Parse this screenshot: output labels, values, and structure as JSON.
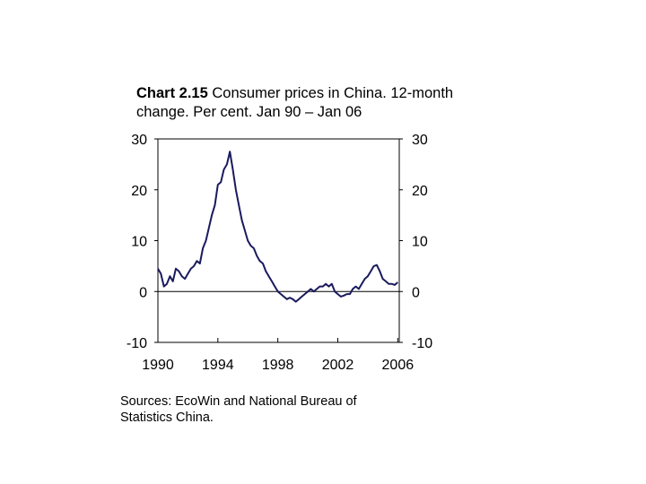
{
  "title": {
    "prefix": "Chart 2.15",
    "text": " Consumer prices in China. 12-month change. Per cent. Jan 90 – Jan 06"
  },
  "source_note": "Sources: EcoWin and National Bureau of Statistics China.",
  "colors": {
    "line": "#1a1a5e",
    "axis": "#000000"
  },
  "chart_data": {
    "type": "line",
    "title": "Chart 2.15 Consumer prices in China. 12-month change. Per cent. Jan 90 – Jan 06",
    "xlabel": "",
    "ylabel": "",
    "xlim": [
      1990,
      2006.1
    ],
    "ylim": [
      -10,
      30
    ],
    "y_ticks": [
      30,
      20,
      10,
      0,
      -10
    ],
    "x_ticks": [
      1990,
      1994,
      1998,
      2002,
      2006
    ],
    "y_tick_labels": [
      "30",
      "20",
      "10",
      "0",
      "-10"
    ],
    "x_tick_labels": [
      "1990",
      "1994",
      "1998",
      "2002",
      "2006"
    ],
    "dual_y_axis": true,
    "zero_line": true,
    "grid": false,
    "series": [
      {
        "values": [
          [
            1990.0,
            4.5
          ],
          [
            1990.2,
            3.5
          ],
          [
            1990.4,
            1.0
          ],
          [
            1990.6,
            1.5
          ],
          [
            1990.8,
            3.0
          ],
          [
            1991.0,
            2.0
          ],
          [
            1991.2,
            4.5
          ],
          [
            1991.4,
            4.0
          ],
          [
            1991.6,
            3.0
          ],
          [
            1991.8,
            2.5
          ],
          [
            1992.0,
            3.5
          ],
          [
            1992.2,
            4.5
          ],
          [
            1992.4,
            5.0
          ],
          [
            1992.6,
            6.0
          ],
          [
            1992.8,
            5.5
          ],
          [
            1993.0,
            8.5
          ],
          [
            1993.2,
            10.0
          ],
          [
            1993.4,
            12.5
          ],
          [
            1993.6,
            15.0
          ],
          [
            1993.8,
            17.0
          ],
          [
            1994.0,
            21.0
          ],
          [
            1994.2,
            21.5
          ],
          [
            1994.4,
            24.0
          ],
          [
            1994.6,
            25.0
          ],
          [
            1994.8,
            27.5
          ],
          [
            1995.0,
            24.0
          ],
          [
            1995.2,
            20.0
          ],
          [
            1995.4,
            17.0
          ],
          [
            1995.6,
            14.0
          ],
          [
            1995.8,
            12.0
          ],
          [
            1996.0,
            10.0
          ],
          [
            1996.2,
            9.0
          ],
          [
            1996.4,
            8.5
          ],
          [
            1996.6,
            7.0
          ],
          [
            1996.8,
            6.0
          ],
          [
            1997.0,
            5.5
          ],
          [
            1997.2,
            4.0
          ],
          [
            1997.4,
            3.0
          ],
          [
            1997.6,
            2.0
          ],
          [
            1997.8,
            1.0
          ],
          [
            1998.0,
            0.0
          ],
          [
            1998.2,
            -0.5
          ],
          [
            1998.4,
            -1.0
          ],
          [
            1998.6,
            -1.5
          ],
          [
            1998.8,
            -1.2
          ],
          [
            1999.0,
            -1.5
          ],
          [
            1999.2,
            -2.0
          ],
          [
            1999.4,
            -1.5
          ],
          [
            1999.6,
            -1.0
          ],
          [
            1999.8,
            -0.5
          ],
          [
            2000.0,
            0.0
          ],
          [
            2000.2,
            0.5
          ],
          [
            2000.4,
            0.0
          ],
          [
            2000.6,
            0.5
          ],
          [
            2000.8,
            1.0
          ],
          [
            2001.0,
            1.0
          ],
          [
            2001.2,
            1.5
          ],
          [
            2001.4,
            1.0
          ],
          [
            2001.6,
            1.5
          ],
          [
            2001.8,
            0.0
          ],
          [
            2002.0,
            -0.5
          ],
          [
            2002.2,
            -1.0
          ],
          [
            2002.4,
            -0.8
          ],
          [
            2002.6,
            -0.5
          ],
          [
            2002.8,
            -0.5
          ],
          [
            2003.0,
            0.5
          ],
          [
            2003.2,
            1.0
          ],
          [
            2003.4,
            0.5
          ],
          [
            2003.6,
            1.5
          ],
          [
            2003.8,
            2.5
          ],
          [
            2004.0,
            3.0
          ],
          [
            2004.2,
            4.0
          ],
          [
            2004.4,
            5.0
          ],
          [
            2004.6,
            5.2
          ],
          [
            2004.8,
            4.0
          ],
          [
            2005.0,
            2.5
          ],
          [
            2005.2,
            2.0
          ],
          [
            2005.4,
            1.5
          ],
          [
            2005.6,
            1.5
          ],
          [
            2005.8,
            1.3
          ],
          [
            2006.0,
            1.8
          ]
        ]
      }
    ]
  }
}
